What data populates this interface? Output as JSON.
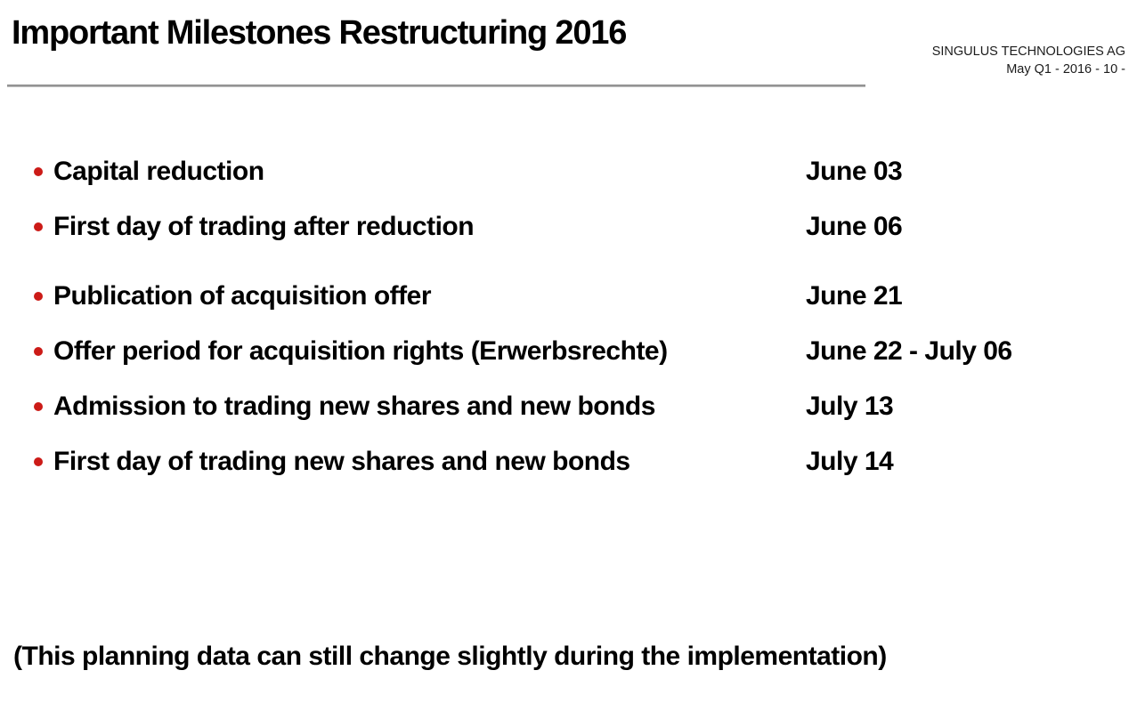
{
  "slide": {
    "title": "Important Milestones Restructuring 2016",
    "header": {
      "company": "SINGULUS TECHNOLOGIES AG",
      "page_ref": "May Q1 - 2016 - 10 -"
    },
    "milestones": [
      {
        "group": 1,
        "label": "Capital reduction",
        "date": "June 03"
      },
      {
        "group": 1,
        "label": "First day of trading after reduction",
        "date": "June 06"
      },
      {
        "group": 2,
        "label": "Publication of acquisition offer",
        "date": "June 21"
      },
      {
        "group": 2,
        "label": "Offer period for acquisition rights (Erwerbsrechte)",
        "date": "June 22 - July 06"
      },
      {
        "group": 2,
        "label": "Admission to trading new shares and new bonds",
        "date": "July 13"
      },
      {
        "group": 2,
        "label": "First day of trading new shares and new bonds",
        "date": "July 14"
      }
    ],
    "footnote": "(This planning data can still change slightly during the implementation)",
    "colors": {
      "bullet": "#cc1b17",
      "divider": "#8c8c8c",
      "text": "#000000"
    }
  }
}
